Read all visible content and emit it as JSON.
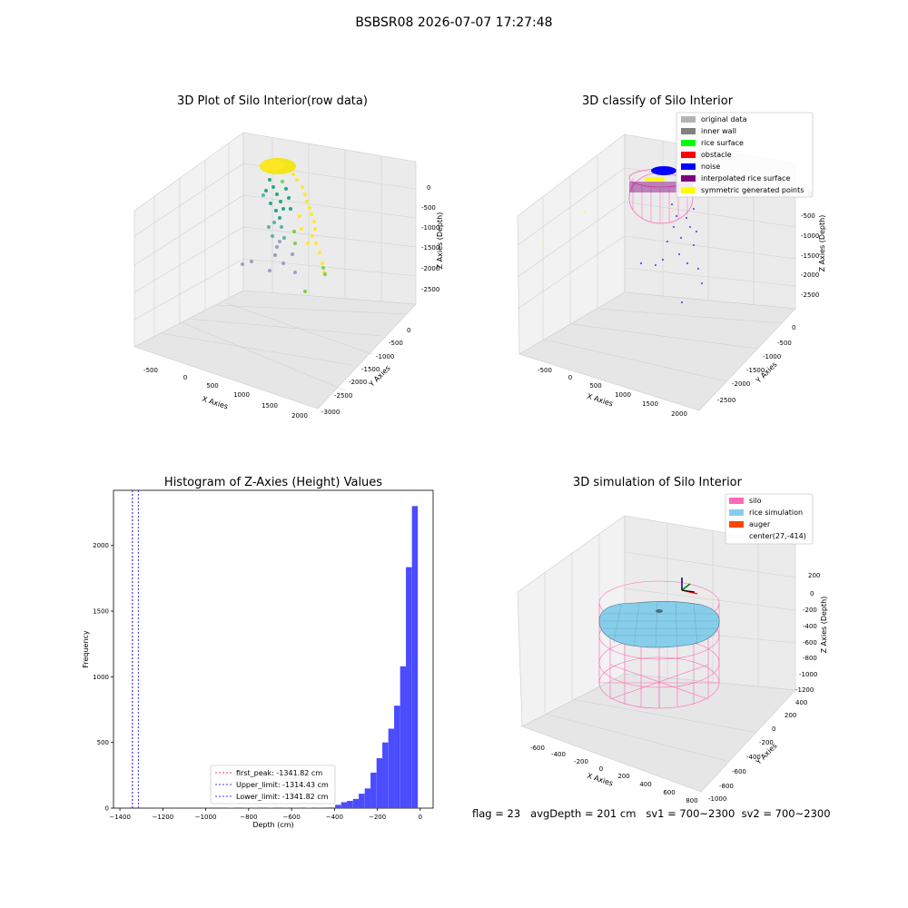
{
  "suptitle": "BSBSR08 2026-07-07 17:27:48",
  "panels": {
    "raw": {
      "title": "3D Plot of Silo Interior(row data)",
      "xlabel": "X Axies",
      "ylabel": "Y Axies",
      "zlabel": "Z Axies (Depth)",
      "xticks": [
        "-500",
        "0",
        "500",
        "1000",
        "1500",
        "2000"
      ],
      "yticks": [
        "0",
        "-500",
        "-1000",
        "-1500",
        "-2000",
        "-2500",
        "-3000"
      ],
      "zticks": [
        "0",
        "-500",
        "-1000",
        "-1500",
        "-2000",
        "-2500"
      ]
    },
    "classify": {
      "title": "3D classify of Silo Interior",
      "xlabel": "X Axies",
      "ylabel": "Y Axies",
      "zlabel": "Z Axies (Depth)",
      "xticks": [
        "-500",
        "0",
        "500",
        "1000",
        "1500",
        "2000"
      ],
      "yticks": [
        "0",
        "-500",
        "-1000",
        "-1500",
        "-2000",
        "-2500"
      ],
      "zticks": [
        "0",
        "-500",
        "-1000",
        "-1500",
        "-2000",
        "-2500"
      ],
      "legend": [
        {
          "label": "original data",
          "color": "#b4b4b4"
        },
        {
          "label": "inner wall",
          "color": "#808080"
        },
        {
          "label": "rice surface",
          "color": "#00ff00"
        },
        {
          "label": "obstacle",
          "color": "#ff0000"
        },
        {
          "label": "noise",
          "color": "#0000ff"
        },
        {
          "label": "interpolated rice surface",
          "color": "#800080"
        },
        {
          "label": "symmetric generated points",
          "color": "#ffff00"
        }
      ]
    },
    "simulation": {
      "title": "3D simulation of Silo Interior",
      "xlabel": "X Axies",
      "ylabel": "Y Axies",
      "zlabel": "Z Axies (Depth)",
      "xticks": [
        "-600",
        "-400",
        "-200",
        "0",
        "200",
        "400",
        "600",
        "800"
      ],
      "yticks": [
        "400",
        "200",
        "0",
        "-200",
        "-400",
        "-600",
        "-800",
        "-1000"
      ],
      "zticks": [
        "200",
        "0",
        "-200",
        "-400",
        "-600",
        "-800",
        "-1000",
        "-1200"
      ],
      "legend": [
        {
          "label": "silo",
          "color": "#ff69b4"
        },
        {
          "label": "rice simulation",
          "color": "#87ceeb"
        },
        {
          "label": "auger",
          "color": "#ff4500"
        },
        {
          "label": "center(27,-414)",
          "color": ""
        }
      ],
      "footer": {
        "flag": "flag = 23",
        "avg": "avgDepth = 201 cm",
        "sv1": "sv1 = 700~2300",
        "sv2": "sv2 = 700~2300"
      }
    }
  },
  "chart_data": [
    {
      "type": "histogram",
      "title": "Histogram of Z-Axies (Height) Values",
      "xlabel": "Depth (cm)",
      "ylabel": "Frequency",
      "xlim": [
        -1430,
        60
      ],
      "ylim": [
        0,
        2420
      ],
      "xticks": [
        -1400,
        -1200,
        -1000,
        -800,
        -600,
        -400,
        -200,
        0
      ],
      "yticks": [
        0,
        500,
        1000,
        1500,
        2000
      ],
      "bar_color": "#4b4bff",
      "bin_width": 27.5,
      "bins": [
        {
          "x": -880,
          "count": 3
        },
        {
          "x": -810,
          "count": 2
        },
        {
          "x": -770,
          "count": 2
        },
        {
          "x": -700,
          "count": 3
        },
        {
          "x": -630,
          "count": 2
        },
        {
          "x": -580,
          "count": 2
        },
        {
          "x": -520,
          "count": 3
        },
        {
          "x": -470,
          "count": 4
        },
        {
          "x": -420,
          "count": 5
        },
        {
          "x": -383,
          "count": 25
        },
        {
          "x": -355,
          "count": 45
        },
        {
          "x": -328,
          "count": 55
        },
        {
          "x": -300,
          "count": 70
        },
        {
          "x": -273,
          "count": 110
        },
        {
          "x": -245,
          "count": 150
        },
        {
          "x": -218,
          "count": 270
        },
        {
          "x": -190,
          "count": 380
        },
        {
          "x": -163,
          "count": 500
        },
        {
          "x": -135,
          "count": 605
        },
        {
          "x": -108,
          "count": 780
        },
        {
          "x": -80,
          "count": 1080
        },
        {
          "x": -53,
          "count": 1835
        },
        {
          "x": -25,
          "count": 2300
        }
      ],
      "lines": [
        {
          "name": "first_peak: -1341.82 cm",
          "x": -1341.82,
          "color": "#ff0000"
        },
        {
          "name": "Upper_limit: -1314.43 cm",
          "x": -1314.43,
          "color": "#0000ff"
        },
        {
          "name": "Lower_limit: -1341.82 cm",
          "x": -1341.82,
          "color": "#0000ff"
        }
      ],
      "legend_position": "lower-center"
    }
  ]
}
